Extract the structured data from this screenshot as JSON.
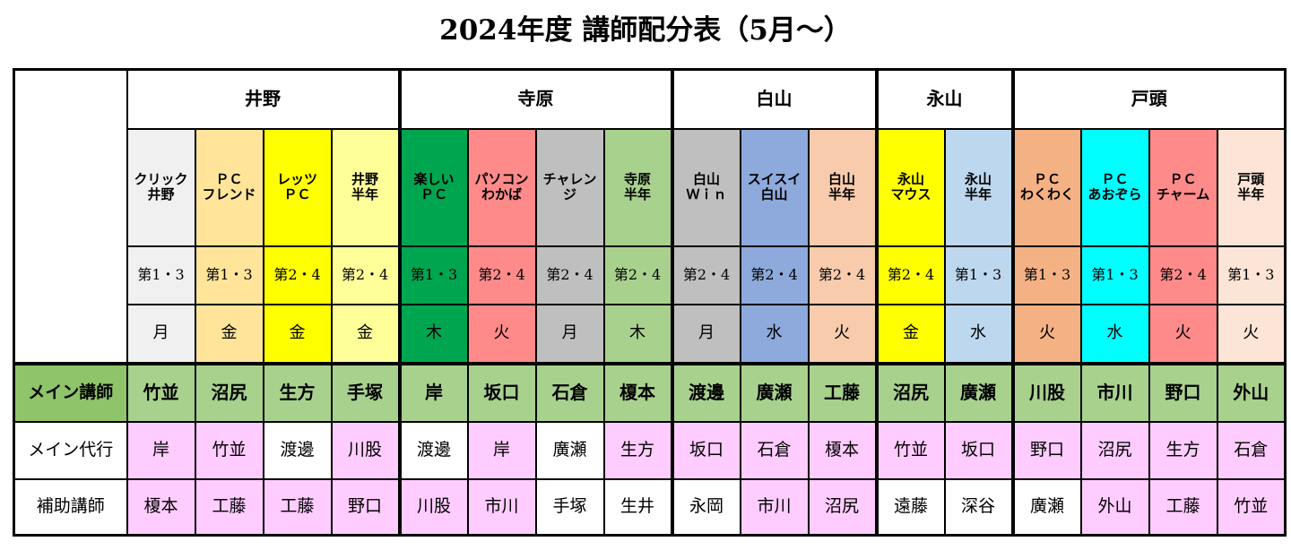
{
  "title": "2024年度 講師配分表（5月～）",
  "locations": [
    {
      "name": "井野",
      "span": 4
    },
    {
      "name": "寺原",
      "span": 4
    },
    {
      "name": "白山",
      "span": 3
    },
    {
      "name": "永山",
      "span": 2
    },
    {
      "name": "戸頭",
      "span": 4
    }
  ],
  "row_labels": {
    "main": "メイン講師",
    "sub": "メイン代行",
    "assist": "補助講師"
  },
  "colors": {
    "main_row": "#a9d18e",
    "main_label": "#8fc46a",
    "pink": "#ffccff",
    "white": "#ffffff"
  },
  "courses": [
    {
      "name": "クリック\n井野",
      "sched": "第1・3",
      "day": "月",
      "color": "#f0f0f0",
      "main": "竹並",
      "sub": "岸",
      "sub_pink": true,
      "assist": "榎本",
      "assist_pink": true
    },
    {
      "name": "ＰＣ\nフレンド",
      "sched": "第1・3",
      "day": "金",
      "color": "#ffe49a",
      "main": "沼尻",
      "sub": "竹並",
      "sub_pink": true,
      "assist": "工藤",
      "assist_pink": true
    },
    {
      "name": "レッツ\nＰＣ",
      "sched": "第2・4",
      "day": "金",
      "color": "#ffff00",
      "main": "生方",
      "sub": "渡邊",
      "sub_pink": false,
      "assist": "工藤",
      "assist_pink": true
    },
    {
      "name": "井野\n半年",
      "sched": "第2・4",
      "day": "金",
      "color": "#ffff99",
      "main": "手塚",
      "sub": "川股",
      "sub_pink": true,
      "assist": "野口",
      "assist_pink": true
    },
    {
      "name": "楽しい\nＰＣ",
      "sched": "第1・3",
      "day": "木",
      "color": "#00a550",
      "main": "岸",
      "sub": "渡邊",
      "sub_pink": false,
      "assist": "川股",
      "assist_pink": true
    },
    {
      "name": "パソコン\nわかば",
      "sched": "第2・4",
      "day": "火",
      "color": "#ff8a8a",
      "main": "坂口",
      "sub": "岸",
      "sub_pink": true,
      "assist": "市川",
      "assist_pink": true
    },
    {
      "name": "チャレン\nジ",
      "sched": "第2・4",
      "day": "月",
      "color": "#bfbfbf",
      "main": "石倉",
      "sub": "廣瀬",
      "sub_pink": false,
      "assist": "手塚",
      "assist_pink": false
    },
    {
      "name": "寺原\n半年",
      "sched": "第2・4",
      "day": "木",
      "color": "#a9d18e",
      "main": "榎本",
      "sub": "生方",
      "sub_pink": true,
      "assist": "生井",
      "assist_pink": false
    },
    {
      "name": "白山\nＷｉｎ",
      "sched": "第2・4",
      "day": "月",
      "color": "#bfbfbf",
      "main": "渡邊",
      "sub": "坂口",
      "sub_pink": true,
      "assist": "永岡",
      "assist_pink": false
    },
    {
      "name": "スイスイ\n白山",
      "sched": "第2・4",
      "day": "水",
      "color": "#8ea9db",
      "main": "廣瀬",
      "sub": "石倉",
      "sub_pink": true,
      "assist": "市川",
      "assist_pink": true
    },
    {
      "name": "白山\n半年",
      "sched": "第2・4",
      "day": "火",
      "color": "#f8cbad",
      "main": "工藤",
      "sub": "榎本",
      "sub_pink": true,
      "assist": "沼尻",
      "assist_pink": true
    },
    {
      "name": "永山\nマウス",
      "sched": "第2・4",
      "day": "金",
      "color": "#ffff00",
      "main": "沼尻",
      "sub": "竹並",
      "sub_pink": true,
      "assist": "遠藤",
      "assist_pink": false
    },
    {
      "name": "永山\n半年",
      "sched": "第1・3",
      "day": "水",
      "color": "#bdd7ee",
      "main": "廣瀬",
      "sub": "坂口",
      "sub_pink": true,
      "assist": "深谷",
      "assist_pink": false
    },
    {
      "name": "ＰＣ\nわくわく",
      "sched": "第1・3",
      "day": "火",
      "color": "#f4b183",
      "main": "川股",
      "sub": "野口",
      "sub_pink": true,
      "assist": "廣瀬",
      "assist_pink": false
    },
    {
      "name": "ＰＣ\nあおぞら",
      "sched": "第1・3",
      "day": "水",
      "color": "#00ffff",
      "main": "市川",
      "sub": "沼尻",
      "sub_pink": true,
      "assist": "外山",
      "assist_pink": true
    },
    {
      "name": "ＰＣ\nチャーム",
      "sched": "第2・4",
      "day": "火",
      "color": "#ff8a8a",
      "main": "野口",
      "sub": "生方",
      "sub_pink": true,
      "assist": "工藤",
      "assist_pink": true
    },
    {
      "name": "戸頭\n半年",
      "sched": "第1・3",
      "day": "火",
      "color": "#fce4d6",
      "main": "外山",
      "sub": "石倉",
      "sub_pink": true,
      "assist": "竹並",
      "assist_pink": true
    }
  ]
}
